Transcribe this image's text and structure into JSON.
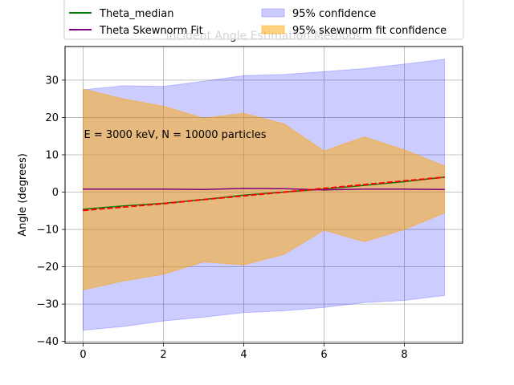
{
  "chart_data": {
    "type": "line",
    "title": "Incident Angle Estimation Methods",
    "xlabel": "",
    "ylabel": "Angle (degrees)",
    "xlim": [
      -0.45,
      9.45
    ],
    "ylim": [
      -40.5,
      39
    ],
    "xticks": [
      0,
      2,
      4,
      6,
      8
    ],
    "yticks": [
      -40,
      -30,
      -20,
      -10,
      0,
      10,
      20,
      30
    ],
    "grid": true,
    "legend_placement": "top, two columns, partially above the axes",
    "annotation": "E = 3000 keV, N = 10000 particles",
    "x": [
      0,
      1,
      2,
      3,
      4,
      5,
      6,
      7,
      8,
      9
    ],
    "series": [
      {
        "name": "Theta_median",
        "kind": "line",
        "color": "#008000",
        "values": [
          -4.6,
          -3.7,
          -3.0,
          -2.0,
          -0.8,
          0.0,
          0.8,
          1.8,
          2.8,
          4.0
        ]
      },
      {
        "name": "Theta Skewnorm Fit",
        "kind": "line",
        "color": "#800080",
        "values": [
          0.8,
          0.8,
          0.8,
          0.7,
          1.0,
          0.9,
          0.6,
          0.8,
          0.8,
          0.7
        ]
      },
      {
        "name": "",
        "kind": "dashed-line",
        "color": "#ff0000",
        "values": [
          -4.9,
          -4.0,
          -3.1,
          -2.0,
          -1.0,
          0.0,
          1.0,
          2.0,
          3.0,
          4.0
        ]
      },
      {
        "name": "95% confidence",
        "kind": "band",
        "color": "#0000ff",
        "opacity": 0.2,
        "upper": [
          27.4,
          28.5,
          28.3,
          29.7,
          31.2,
          31.5,
          32.3,
          33.1,
          34.3,
          35.6
        ],
        "lower": [
          -37.0,
          -36.0,
          -34.5,
          -33.5,
          -32.3,
          -31.8,
          -30.9,
          -29.6,
          -29.0,
          -27.7
        ]
      },
      {
        "name": "95% skewnorm fit confidence",
        "kind": "band",
        "color": "#ffa500",
        "opacity": 0.5,
        "upper": [
          27.6,
          25.0,
          23.0,
          19.8,
          21.1,
          18.3,
          11.0,
          14.8,
          11.3,
          7.0
        ],
        "lower": [
          -26.2,
          -23.8,
          -22.0,
          -18.7,
          -19.5,
          -16.7,
          -10.2,
          -13.3,
          -10.0,
          -5.6
        ]
      }
    ],
    "legend_partial_entries": [
      "",
      ""
    ]
  }
}
